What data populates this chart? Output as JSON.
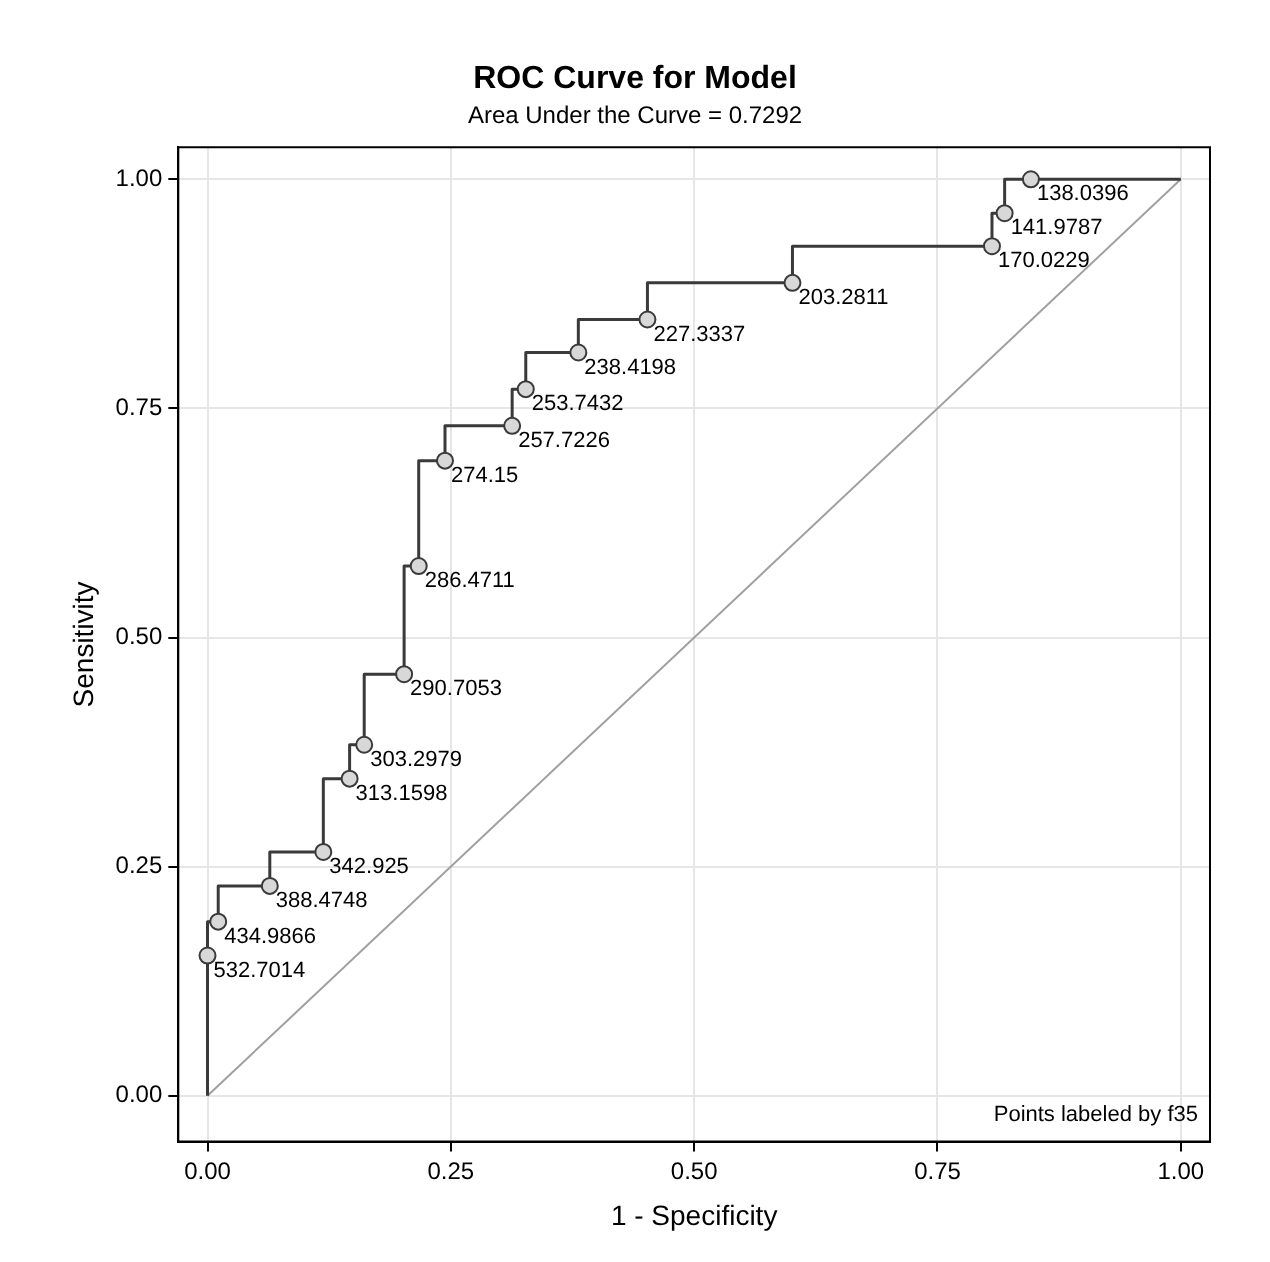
{
  "chart_data": {
    "type": "step",
    "title": "ROC Curve for Model",
    "subtitle": "Area Under the Curve = 0.7292",
    "xlabel": "1 - Specificity",
    "ylabel": "Sensitivity",
    "xlim": [
      -0.03,
      1.03
    ],
    "ylim": [
      -0.05,
      1.035
    ],
    "xticks": [
      {
        "value": 0,
        "label": "0.00"
      },
      {
        "value": 0.25,
        "label": "0.25"
      },
      {
        "value": 0.5,
        "label": "0.50"
      },
      {
        "value": 0.75,
        "label": "0.75"
      },
      {
        "value": 1,
        "label": "1.00"
      }
    ],
    "yticks": [
      {
        "value": 0,
        "label": "0.00"
      },
      {
        "value": 0.25,
        "label": "0.25"
      },
      {
        "value": 0.5,
        "label": "0.50"
      },
      {
        "value": 0.75,
        "label": "0.75"
      },
      {
        "value": 1,
        "label": "1.00"
      }
    ],
    "grid": true,
    "legend": false,
    "marker": "circle",
    "annotations": [
      "Points labeled by f35",
      {
        "text": "532.7014",
        "x": 0,
        "y": 0.153
      },
      {
        "text": "434.9866",
        "x": 0.011,
        "y": 0.19
      },
      {
        "text": "388.4748",
        "x": 0.064,
        "y": 0.229
      },
      {
        "text": "342.925",
        "x": 0.119,
        "y": 0.266
      },
      {
        "text": "313.1598",
        "x": 0.146,
        "y": 0.346
      },
      {
        "text": "303.2979",
        "x": 0.161,
        "y": 0.383
      },
      {
        "text": "290.7053",
        "x": 0.202,
        "y": 0.46
      },
      {
        "text": "286.4711",
        "x": 0.217,
        "y": 0.578
      },
      {
        "text": "274.15",
        "x": 0.244,
        "y": 0.693
      },
      {
        "text": "257.7226",
        "x": 0.313,
        "y": 0.731
      },
      {
        "text": "253.7432",
        "x": 0.327,
        "y": 0.771
      },
      {
        "text": "238.4198",
        "x": 0.381,
        "y": 0.811
      },
      {
        "text": "227.3337",
        "x": 0.452,
        "y": 0.847
      },
      {
        "text": "203.2811",
        "x": 0.601,
        "y": 0.887
      },
      {
        "text": "170.0229",
        "x": 0.806,
        "y": 0.927
      },
      {
        "text": "141.9787",
        "x": 0.819,
        "y": 0.963
      },
      {
        "text": "138.0396",
        "x": 0.846,
        "y": 1
      }
    ],
    "series": [
      {
        "color": "#3a3a3a",
        "x": [
          0,
          0,
          0.011,
          0.064,
          0.119,
          0.146,
          0.161,
          0.202,
          0.217,
          0.244,
          0.313,
          0.327,
          0.381,
          0.452,
          0.601,
          0.806,
          0.819,
          0.846,
          1
        ],
        "values": [
          0,
          0.153,
          0.19,
          0.229,
          0.266,
          0.346,
          0.383,
          0.46,
          0.578,
          0.693,
          0.731,
          0.771,
          0.811,
          0.847,
          0.887,
          0.927,
          0.963,
          1,
          1
        ]
      },
      {
        "type": "line",
        "color": "#a0a0a0",
        "marker": "none",
        "x": [
          0,
          1
        ],
        "values": [
          0,
          1
        ]
      }
    ]
  }
}
